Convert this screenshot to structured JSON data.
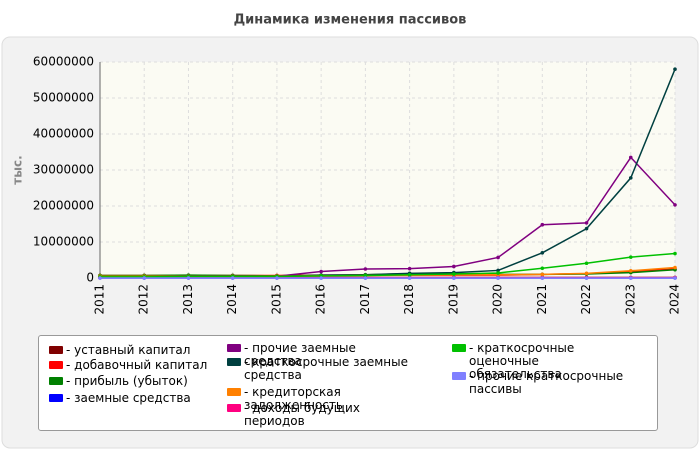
{
  "chart_data": {
    "type": "line",
    "title": "Динамика изменения пассивов",
    "y_label": "тыс.",
    "categories": [
      "2011",
      "2012",
      "2013",
      "2014",
      "2015",
      "2016",
      "2017",
      "2018",
      "2019",
      "2020",
      "2021",
      "2022",
      "2023",
      "2024"
    ],
    "ylim": [
      0,
      60000000
    ],
    "yticks": [
      0,
      10000000,
      20000000,
      30000000,
      40000000,
      50000000,
      60000000
    ],
    "grid": true,
    "series": [
      {
        "name": "- уставный капитал",
        "color": "#800000",
        "values": [
          150000,
          150000,
          150000,
          150000,
          150000,
          150000,
          150000,
          150000,
          150000,
          150000,
          150000,
          150000,
          150000,
          150000
        ]
      },
      {
        "name": "- добавочный капитал",
        "color": "#ff0000",
        "values": [
          700000,
          700000,
          700000,
          700000,
          700000,
          800000,
          800000,
          800000,
          800000,
          800000,
          1000000,
          1200000,
          1800000,
          2500000
        ]
      },
      {
        "name": "- прибыль (убыток)",
        "color": "#008000",
        "values": [
          700000,
          700000,
          800000,
          700000,
          600000,
          700000,
          900000,
          1200000,
          1300000,
          1000000,
          1000000,
          1100000,
          1500000,
          2300000
        ]
      },
      {
        "name": "- заемные средства",
        "color": "#0000ff",
        "values": [
          0,
          0,
          0,
          0,
          0,
          0,
          0,
          0,
          0,
          0,
          0,
          0,
          0,
          0
        ]
      },
      {
        "name": "- прочие заемные средства",
        "color": "#800080",
        "values": [
          300000,
          400000,
          300000,
          300000,
          500000,
          1800000,
          2500000,
          2600000,
          3200000,
          5700000,
          14800000,
          15300000,
          33500000,
          20300000
        ]
      },
      {
        "name": "- краткосрочные заемные средства",
        "color": "#004040",
        "values": [
          400000,
          500000,
          600000,
          600000,
          500000,
          800000,
          900000,
          1300000,
          1500000,
          2100000,
          7000000,
          13700000,
          27800000,
          58000000
        ]
      },
      {
        "name": "- кредиторская задолженность",
        "color": "#ff8000",
        "values": [
          500000,
          500000,
          500000,
          500000,
          500000,
          600000,
          700000,
          800000,
          900000,
          900000,
          1000000,
          1300000,
          2000000,
          2900000
        ]
      },
      {
        "name": "- доходы будущих периодов",
        "color": "#ff0080",
        "values": [
          100000,
          100000,
          100000,
          100000,
          100000,
          100000,
          100000,
          100000,
          100000,
          100000,
          100000,
          100000,
          100000,
          100000
        ]
      },
      {
        "name": "- краткосрочные оценочные обязательства",
        "color": "#00c000",
        "values": [
          300000,
          300000,
          400000,
          400000,
          400000,
          600000,
          700000,
          900000,
          1100000,
          1400000,
          2700000,
          4100000,
          5800000,
          6800000
        ]
      },
      {
        "name": "- прочие краткосрочные пассивы",
        "color": "#8080ff",
        "values": [
          0,
          0,
          0,
          0,
          0,
          0,
          0,
          0,
          0,
          0,
          0,
          0,
          0,
          0
        ]
      }
    ]
  }
}
